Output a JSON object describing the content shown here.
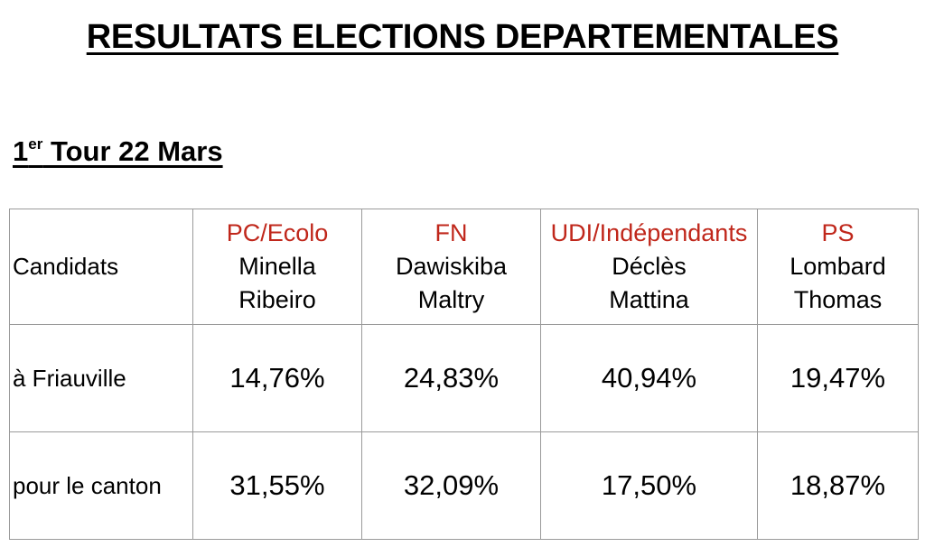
{
  "title": "RESULTATS ELECTIONS DEPARTEMENTALES",
  "round": {
    "number": "1",
    "suffix": "er",
    "rest": " Tour 22 Mars"
  },
  "table": {
    "header_label": "Candidats",
    "candidates": [
      {
        "party": "PC/Ecolo",
        "name1": "Minella",
        "name2": "Ribeiro"
      },
      {
        "party": "FN",
        "name1": "Dawiskiba",
        "name2": "Maltry"
      },
      {
        "party": "UDI/Indépendants",
        "name1": "Déclès",
        "name2": "Mattina"
      },
      {
        "party": "PS",
        "name1": "Lombard",
        "name2": "Thomas"
      }
    ],
    "rows": [
      {
        "label": "à Friauville",
        "values": [
          "14,76%",
          "24,83%",
          "40,94%",
          "19,47%"
        ]
      },
      {
        "label": "pour le canton",
        "values": [
          "31,55%",
          "32,09%",
          "17,50%",
          "18,87%"
        ]
      }
    ]
  },
  "colors": {
    "party_label": "#c0271b",
    "grid_border": "#9a9a9a"
  }
}
